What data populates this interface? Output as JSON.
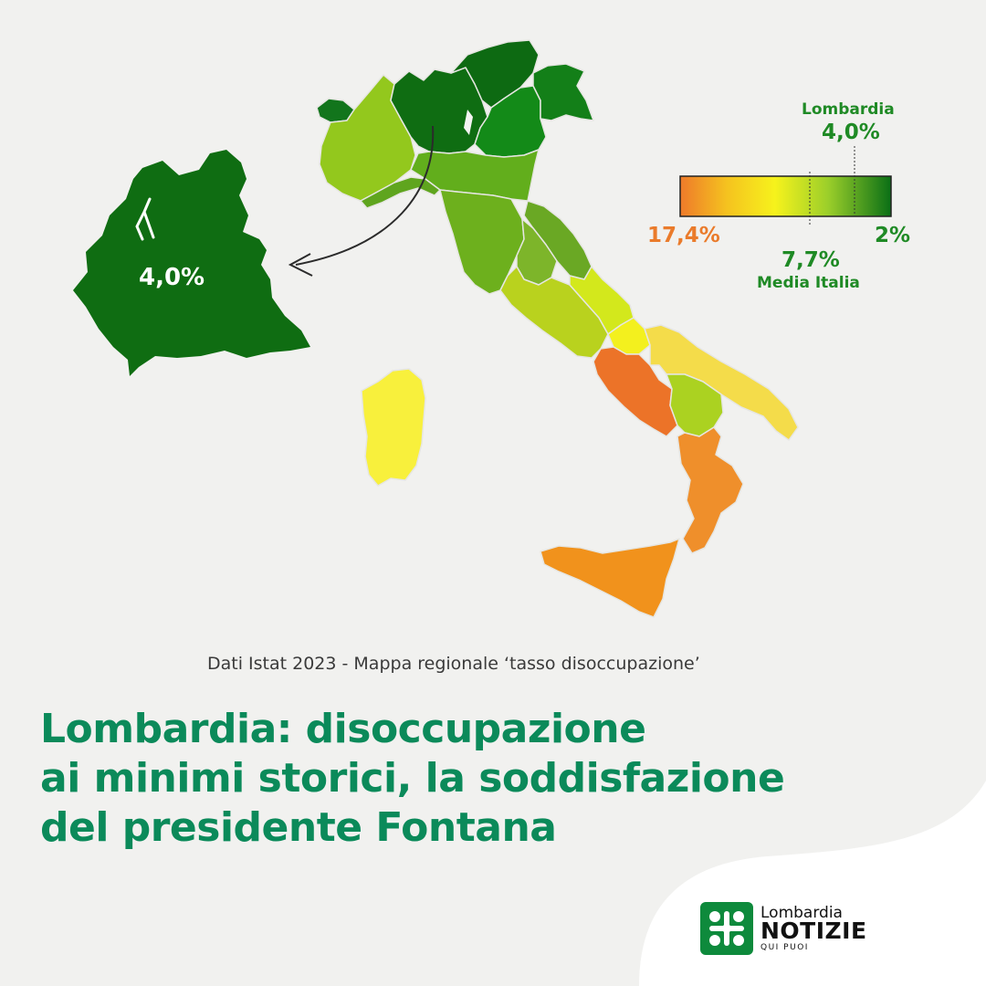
{
  "map": {
    "caption": "Dati Istat 2023 - Mappa regionale ‘tasso disoccupazione’",
    "inset_value": "4,0%",
    "legend": {
      "region_label": "Lombardia",
      "region_value": "4,0%",
      "max_label": "17,4%",
      "min_label": "2%",
      "avg_value": "7,7%",
      "avg_label": "Media Italia",
      "colors": {
        "high": "#ee7a2a",
        "mid": "#f6f21c",
        "low": "#0a6f16"
      }
    }
  },
  "headline": {
    "line1": "Lombardia: disoccupazione",
    "line2": "ai minimi storici, la soddisfazione",
    "line3": "del presidente Fontana"
  },
  "logo": {
    "name": "Lombardia",
    "brand": "NOTIZIE",
    "tagline": "QUI PUOI"
  },
  "colors": {
    "headline": "#0b8a5a",
    "lombardia": "#0f6d12",
    "legend_high_text": "#ea7b2b",
    "legend_green_text": "#1f8a25"
  }
}
